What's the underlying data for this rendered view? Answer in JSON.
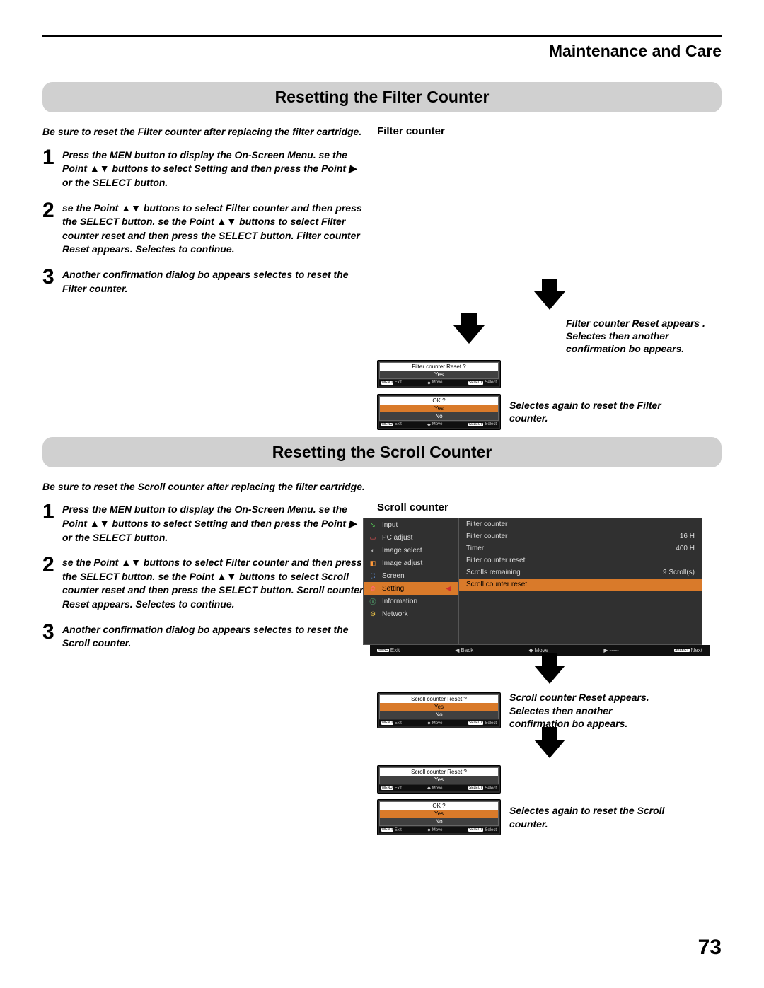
{
  "chapter": "Maintenance and Care",
  "page_number": "73",
  "colors": {
    "banner_bg": "#d0d0d0",
    "dialog_bg": "#2a2a2a",
    "selected_bg": "#d97a2a",
    "text": "#000000"
  },
  "section1": {
    "title": "Resetting the Filter Counter",
    "intro": "Be sure to reset the Filter counter after replacing the filter cartridge.",
    "right_heading": "Filter counter",
    "steps": {
      "s1": "Press the MEN button to display the On-Screen Menu. se the Point ▲▼ buttons to select Setting and then press the Point ▶ or the SELECT button.",
      "s2": "se the Point ▲▼ buttons to select Filter counter and then press the SELECT button. se the Point ▲▼ buttons to select Filter counter reset and then press the SELECT button. Filter counter Reset appears. Selectes to continue.",
      "s3": "Another confirmation dialog bo appears selectes to reset the Filter counter."
    },
    "caption1": "Filter counter Reset appears .\nSelectes then another confirmation bo appears.",
    "caption2": "Selectes again to reset the Filter counter.",
    "dialog1": {
      "title": "Filter counter Reset ?",
      "opt": "Yes"
    },
    "dialog2": {
      "title": "OK ?",
      "opt_yes": "Yes",
      "opt_no": "No"
    },
    "dlg_footer": {
      "exit": "Exit",
      "move": "Move",
      "select": "Select",
      "menu": "MENU",
      "sel": "SELECT"
    }
  },
  "section2": {
    "title": "Resetting the Scroll Counter",
    "intro": "Be sure to reset the Scroll counter after replacing the filter cartridge.",
    "right_heading": "Scroll counter",
    "steps": {
      "s1": "Press the MEN button to display the On-Screen Menu. se the Point ▲▼ buttons to select Setting and then press the Point ▶ or the SELECT button.",
      "s2": "se the Point ▲▼ buttons to select Filter counter and then press the SELECT button. se the Point ▲▼ buttons to select Scroll counter reset and then press the SELECT button. Scroll counter Reset appears. Selectes to continue.",
      "s3": "Another confirmation dialog bo appears selectes to reset the Scroll counter."
    },
    "caption1": "Scroll counter Reset appears.\nSelectes then another confirmation bo appears.",
    "caption2": "Selectes again to reset the Scroll counter.",
    "dialog1": {
      "title": "Scroll counter Reset ?",
      "opt_yes": "Yes",
      "opt_no": "No"
    },
    "dialog2": {
      "title": "Scroll counter Reset ?",
      "opt": "Yes"
    },
    "dialog3": {
      "title": "OK ?",
      "opt_yes": "Yes",
      "opt_no": "No"
    },
    "menu": {
      "left": [
        {
          "icon": "↘",
          "color": "#5bd75b",
          "label": "Input"
        },
        {
          "icon": "▭",
          "color": "#ff5b5b",
          "label": "PC adjust"
        },
        {
          "icon": "◐",
          "color": "#b0b0b0",
          "label": "Image select"
        },
        {
          "icon": "◧",
          "color": "#ff9a3a",
          "label": "Image adjust"
        },
        {
          "icon": "⛶",
          "color": "#6aa8ff",
          "label": "Screen"
        },
        {
          "icon": "✿",
          "color": "#ff6a6a",
          "label": "Setting",
          "selected": true,
          "arrow": true
        },
        {
          "icon": "ⓘ",
          "color": "#6affa0",
          "label": "Information"
        },
        {
          "icon": "⚙",
          "color": "#ffd24a",
          "label": "Network"
        }
      ],
      "right": [
        {
          "label": "Filter counter",
          "value": ""
        },
        {
          "label": "Filter counter",
          "value": "16 H"
        },
        {
          "label": "Timer",
          "value": "400 H"
        },
        {
          "label": "Filter counter reset",
          "value": ""
        },
        {
          "label": "Scrolls remaining",
          "value": "9  Scroll(s)"
        },
        {
          "label": "Scroll counter reset",
          "value": "",
          "selected": true
        }
      ],
      "footer": {
        "exit": "Exit",
        "back": "Back",
        "move": "Move",
        "dash": "-----",
        "next": "Next",
        "menu": "MENU",
        "sel": "SELECT"
      }
    }
  }
}
